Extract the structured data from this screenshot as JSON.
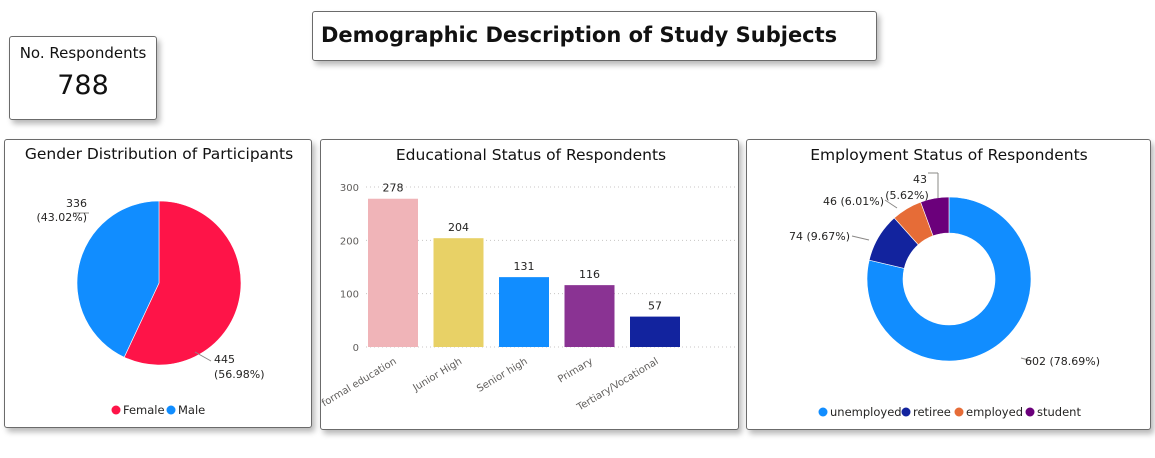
{
  "page": {
    "title": "Demographic Description of Study Subjects",
    "kpi": {
      "label": "No. Respondents",
      "value": "788"
    }
  },
  "chart_data": [
    {
      "type": "pie",
      "title": "Gender Distribution of Participants",
      "slices": [
        {
          "name": "Female",
          "value": 445,
          "label_value": "445",
          "label_pct": "(56.98%)",
          "color": "#fe1448"
        },
        {
          "name": "Male",
          "value": 336,
          "label_value": "336",
          "label_pct": "(43.02%)",
          "color": "#118dff"
        }
      ],
      "legend": [
        "Female",
        "Male"
      ],
      "legend_position": "bottom"
    },
    {
      "type": "bar",
      "title": "Educational Status of Respondents",
      "categories": [
        "No formal education",
        "Junior High",
        "Senior high",
        "Primary",
        "Tertiary/Vocational"
      ],
      "values": [
        278,
        204,
        131,
        116,
        57
      ],
      "colors": [
        "#f0b4b8",
        "#e8d166",
        "#118dff",
        "#8a3393",
        "#12239e"
      ],
      "yticks": [
        0,
        100,
        200,
        300
      ],
      "ylim": [
        0,
        300
      ],
      "grid": true
    },
    {
      "type": "pie",
      "title": "Employment Status of Respondents",
      "donut": true,
      "slices": [
        {
          "name": "unemployed",
          "value": 602,
          "label": "602 (78.69%)",
          "color": "#118dff"
        },
        {
          "name": "retiree",
          "value": 74,
          "label": "74 (9.67%)",
          "color": "#12239e"
        },
        {
          "name": "employed",
          "value": 46,
          "label": "46 (6.01%)",
          "color": "#e66c37"
        },
        {
          "name": "student",
          "value": 43,
          "label_value": "43",
          "label_pct": "(5.62%)",
          "color": "#6b007b"
        }
      ],
      "legend": [
        "unemployed",
        "retiree",
        "employed",
        "student"
      ],
      "legend_position": "bottom"
    }
  ]
}
